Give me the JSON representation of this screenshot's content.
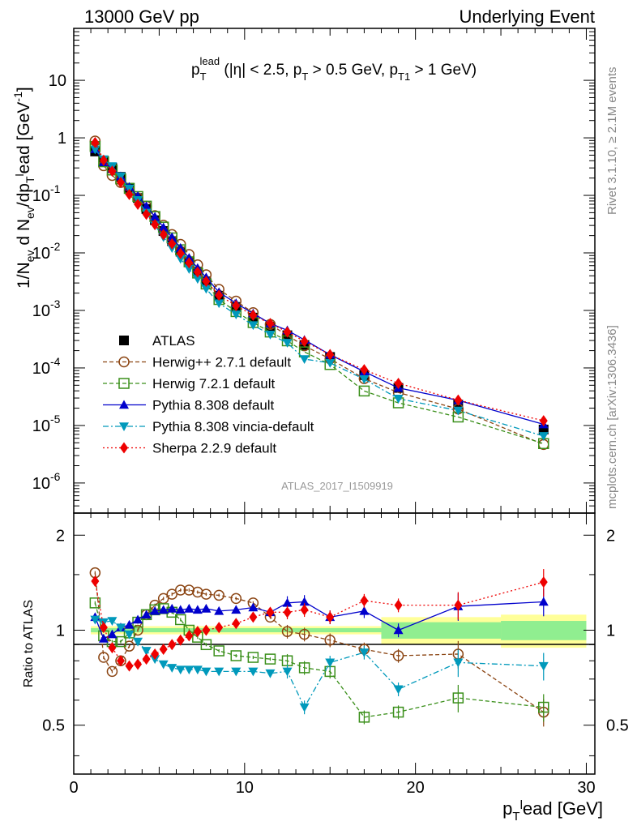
{
  "header": {
    "left": "13000 GeV pp",
    "right": "Underlying Event",
    "title_main": "p",
    "title_sub": "T",
    "title_sup": "lead",
    "title_rest1": " (|η| < 2.5, p",
    "title_sub2": "T",
    "title_rest2": " > 0.5 GeV, p",
    "title_sub3": "T1",
    "title_rest3": " > 1 GeV)"
  },
  "side_labels": {
    "rivet": "Rivet 3.1.10, ≥ 2.1M events",
    "mcplots": "mcplots.cern.ch [arXiv:1306.3436]"
  },
  "watermark": "ATLAS_2017_I1509919",
  "axes": {
    "ylabel_top": "1/N_ev d N_ev/dp_T^lead [GeV^-1]",
    "ylabel_top_parts": [
      "1/N",
      "ev",
      " d N",
      "ev",
      "/dp",
      "T",
      "l",
      "ead [GeV",
      "-1",
      "]"
    ],
    "ylabel_ratio": "Ratio to ATLAS",
    "xlabel_parts": [
      "p",
      "T",
      "l",
      "ead [GeV]"
    ],
    "top_y_ticks": [
      "10",
      "1",
      "10",
      "10",
      "10",
      "10",
      "10",
      "10"
    ],
    "top_y_exps": [
      "",
      "",
      "-1",
      "-2",
      "-3",
      "-4",
      "-5",
      "-6"
    ],
    "ratio_y_ticks": [
      "2",
      "1",
      "0.5"
    ],
    "x_ticks": [
      "0",
      "10",
      "20",
      "30"
    ]
  },
  "chart_data": {
    "type": "line",
    "x": [
      1.25,
      1.75,
      2.25,
      2.75,
      3.25,
      3.75,
      4.25,
      4.75,
      5.25,
      5.75,
      6.25,
      6.75,
      7.25,
      7.75,
      8.5,
      9.5,
      10.5,
      11.5,
      12.5,
      13.5,
      15.0,
      17.0,
      19.0,
      22.5,
      27.5
    ],
    "xlim": [
      0,
      30.5
    ],
    "ylim_top": [
      3e-07,
      80
    ],
    "yscale_top": "log",
    "ylim_ratio": [
      0.35,
      2.35
    ],
    "yscale_ratio": "log",
    "legend_position": "bottom-left",
    "series": [
      {
        "name": "ATLAS",
        "color": "#000000",
        "marker": "square-filled",
        "line": "none",
        "values": [
          0.58,
          0.4,
          0.3,
          0.21,
          0.135,
          0.09,
          0.058,
          0.037,
          0.024,
          0.016,
          0.0105,
          0.007,
          0.0047,
          0.0032,
          0.0018,
          0.00115,
          0.00075,
          0.00052,
          0.00037,
          0.00025,
          0.000155,
          7.5e-05,
          4.5e-05,
          2.3e-05,
          8.5e-06
        ]
      },
      {
        "name": "Herwig++ 2.7.1 default",
        "color": "#8b4513",
        "marker": "circle-open",
        "line": "dashed",
        "ratio": [
          1.52,
          0.82,
          0.74,
          0.8,
          0.89,
          1.0,
          1.12,
          1.2,
          1.26,
          1.3,
          1.34,
          1.34,
          1.32,
          1.3,
          1.29,
          1.26,
          1.22,
          1.1,
          0.99,
          0.97,
          0.93,
          0.87,
          0.83,
          0.84,
          0.55
        ]
      },
      {
        "name": "Herwig 7.2.1 default",
        "color": "#3a8f1a",
        "marker": "square-open",
        "line": "dashed",
        "ratio": [
          1.22,
          0.96,
          0.92,
          0.92,
          0.98,
          1.06,
          1.12,
          1.16,
          1.17,
          1.14,
          1.08,
          1.0,
          0.95,
          0.9,
          0.86,
          0.83,
          0.82,
          0.81,
          0.8,
          0.76,
          0.74,
          0.53,
          0.55,
          0.61,
          0.57
        ]
      },
      {
        "name": "Pythia 8.308 default",
        "color": "#0000cc",
        "marker": "triangle-up",
        "line": "solid",
        "ratio": [
          1.1,
          0.94,
          0.97,
          1.02,
          1.04,
          1.08,
          1.12,
          1.15,
          1.16,
          1.17,
          1.16,
          1.17,
          1.16,
          1.17,
          1.15,
          1.16,
          1.18,
          1.14,
          1.22,
          1.23,
          1.1,
          1.15,
          1.0,
          1.19,
          1.23
        ]
      },
      {
        "name": "Pythia 8.308 vincia-default",
        "color": "#0099bb",
        "marker": "triangle-down",
        "line": "dashdot",
        "ratio": [
          1.08,
          1.06,
          1.07,
          1.02,
          0.97,
          0.92,
          0.86,
          0.81,
          0.78,
          0.76,
          0.75,
          0.75,
          0.75,
          0.74,
          0.74,
          0.74,
          0.74,
          0.73,
          0.74,
          0.57,
          0.79,
          0.85,
          0.65,
          0.79,
          0.77
        ]
      },
      {
        "name": "Sherpa 2.2.9 default",
        "color": "#ee0000",
        "marker": "diamond",
        "line": "dotted",
        "ratio": [
          1.43,
          1.02,
          0.88,
          0.8,
          0.77,
          0.78,
          0.81,
          0.84,
          0.87,
          0.9,
          0.93,
          0.96,
          0.99,
          1.0,
          1.02,
          1.05,
          1.1,
          1.14,
          1.14,
          1.16,
          1.1,
          1.24,
          1.2,
          1.2,
          1.42
        ]
      }
    ],
    "uncertainty_bands": {
      "inner_color": "#90ee90",
      "outer_color": "#ffff99",
      "bins": [
        {
          "x0": 1.0,
          "x1": 18.0,
          "inner": 0.015,
          "outer": 0.03
        },
        {
          "x0": 18.0,
          "x1": 25.0,
          "inner": 0.06,
          "outer": 0.1
        },
        {
          "x0": 25.0,
          "x1": 30.0,
          "inner": 0.07,
          "outer": 0.12
        }
      ]
    }
  }
}
